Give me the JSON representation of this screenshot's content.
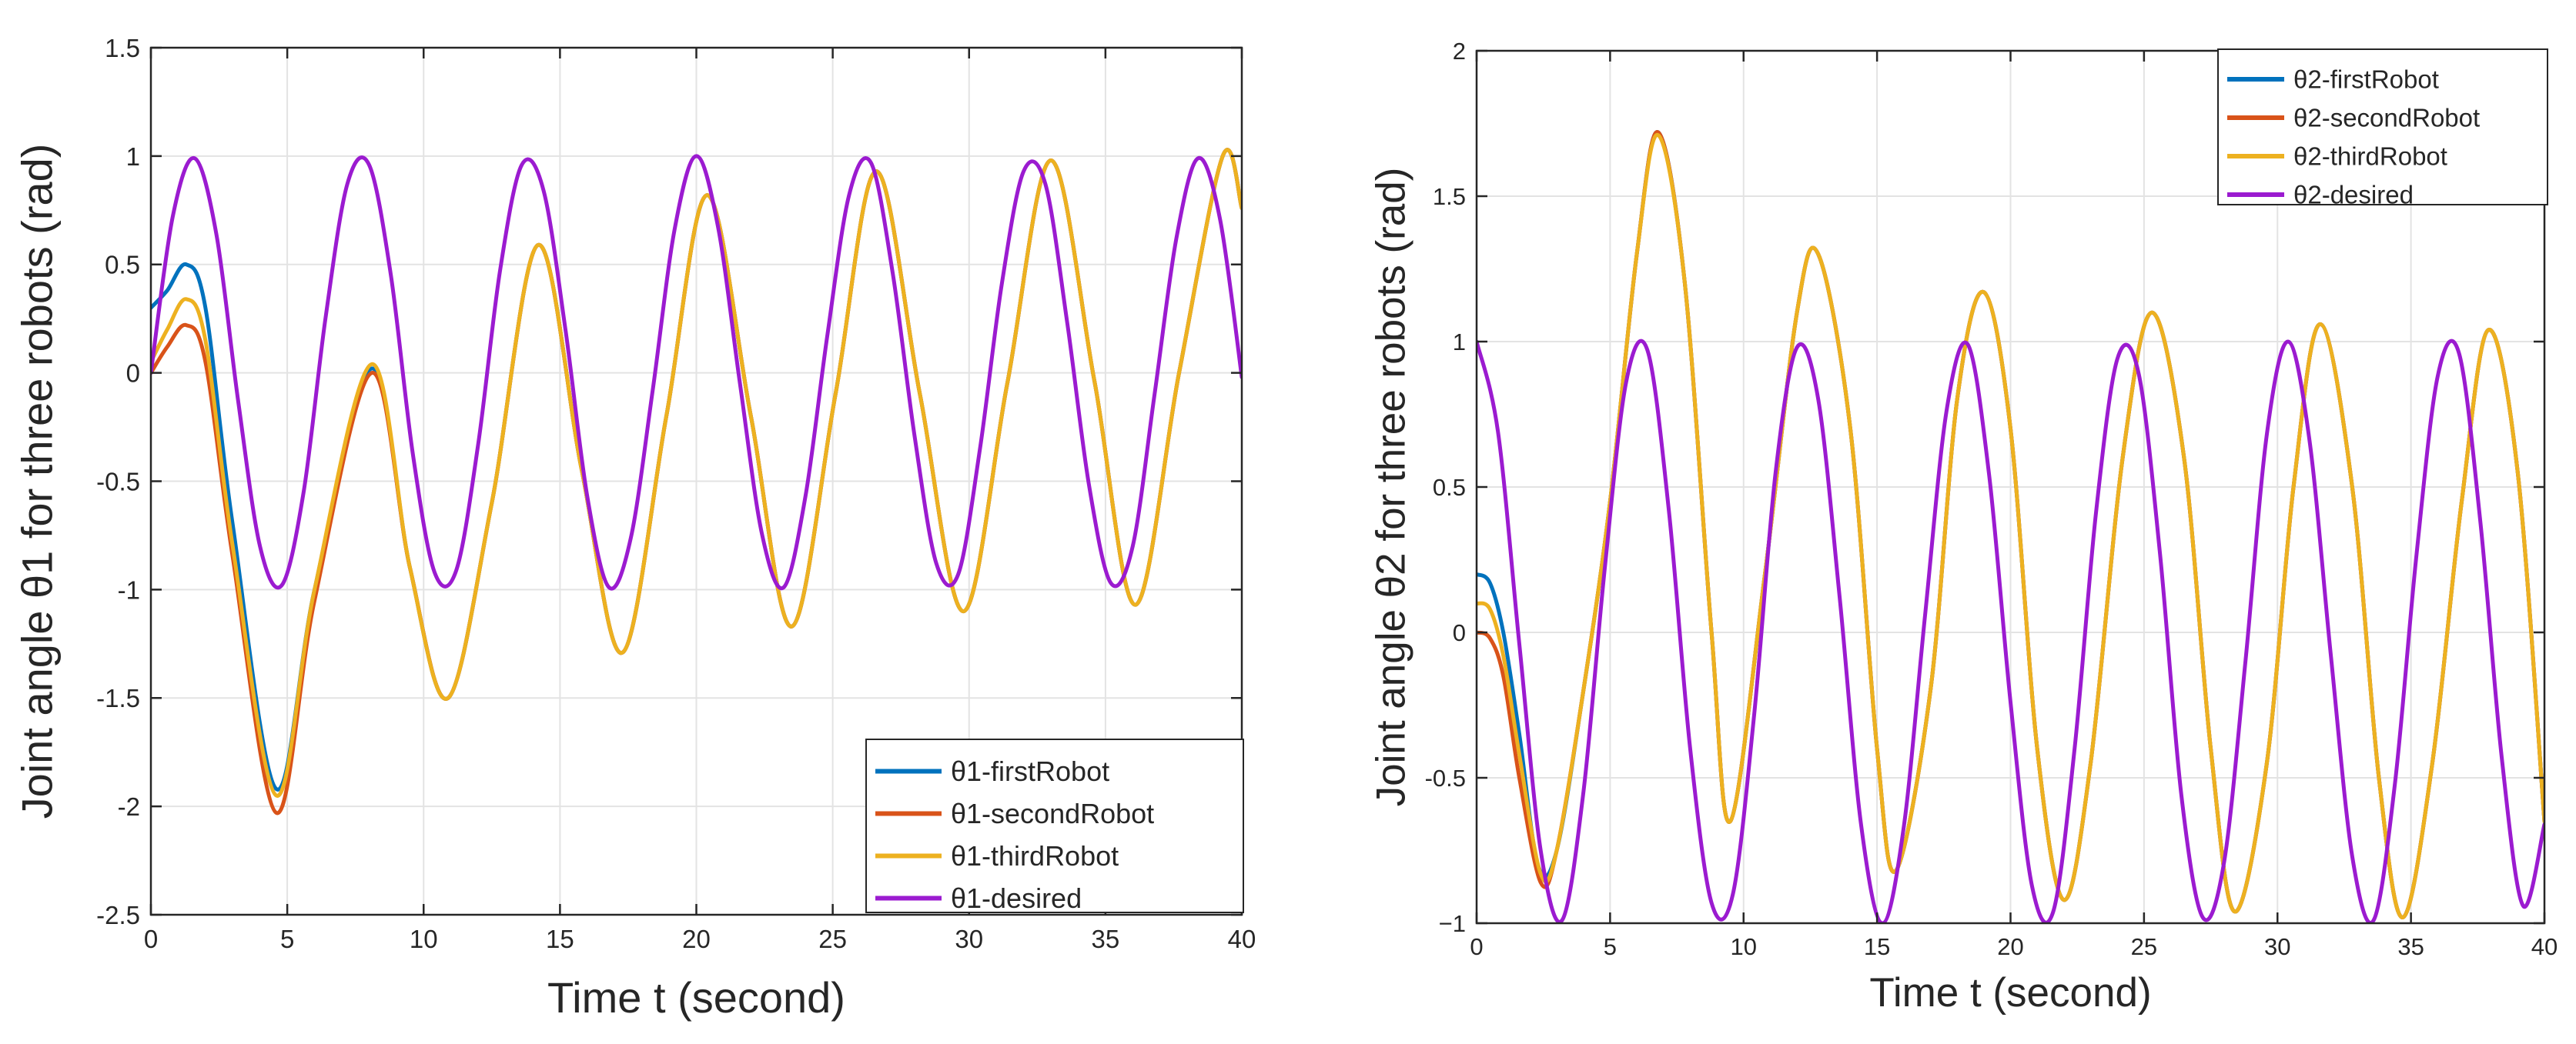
{
  "chart_data": [
    {
      "type": "line",
      "xlabel": "Time t (second)",
      "ylabel": "Joint angle θ1 for three robots (rad)",
      "xlim": [
        0,
        40
      ],
      "ylim": [
        -2.5,
        1.5
      ],
      "grid": true,
      "legend_position": "bottom-right",
      "xticks": [
        0,
        5,
        10,
        15,
        20,
        25,
        30,
        35,
        40
      ],
      "xtick_labels": [
        "0",
        "5",
        "10",
        "15",
        "20",
        "25",
        "30",
        "35",
        "40"
      ],
      "yticks": [
        -2.5,
        -2,
        -1.5,
        -1,
        -0.5,
        0,
        0.5,
        1,
        1.5
      ],
      "ytick_labels": [
        "-2.5",
        "-2",
        "-1.5",
        "-1",
        "-0.5",
        "0",
        "0.5",
        "1",
        "1.5"
      ],
      "series": [
        {
          "name": "θ1-firstRobot",
          "color": "#0072BD",
          "x": [
            0,
            0.6,
            1.3,
            2.0,
            3.0,
            4.6,
            6.0,
            8.1,
            9.5,
            10.9,
            12.5,
            14.2,
            15.8,
            17.3,
            18.9,
            20.4,
            22.0,
            23.5,
            25.1,
            26.6,
            28.2,
            29.8,
            31.4,
            33.0,
            34.6,
            36.1,
            37.7,
            39.3,
            40
          ],
          "values": [
            0.3,
            0.38,
            0.5,
            0.3,
            -0.7,
            -1.92,
            -1.0,
            0.02,
            -0.9,
            -1.5,
            -0.6,
            0.59,
            -0.45,
            -1.29,
            -0.2,
            0.82,
            -0.2,
            -1.17,
            -0.1,
            0.93,
            -0.1,
            -1.1,
            -0.05,
            0.98,
            -0.04,
            -1.07,
            0.0,
            1.0,
            0.76
          ]
        },
        {
          "name": "θ1-secondRobot",
          "color": "#D95319",
          "x": [
            0,
            0.6,
            1.3,
            2.0,
            3.0,
            4.6,
            6.0,
            8.1,
            9.5,
            10.9,
            12.5,
            14.2,
            15.8,
            17.3,
            18.9,
            20.4,
            22.0,
            23.5,
            25.1,
            26.6,
            28.2,
            29.8,
            31.4,
            33.0,
            34.6,
            36.1,
            37.7,
            39.3,
            40
          ],
          "values": [
            0.0,
            0.12,
            0.22,
            0.05,
            -0.85,
            -2.03,
            -1.05,
            0.0,
            -0.9,
            -1.5,
            -0.6,
            0.59,
            -0.45,
            -1.29,
            -0.2,
            0.82,
            -0.2,
            -1.17,
            -0.1,
            0.93,
            -0.1,
            -1.1,
            -0.05,
            0.98,
            -0.04,
            -1.07,
            0.0,
            1.0,
            0.76
          ]
        },
        {
          "name": "θ1-thirdRobot",
          "color": "#EDB120",
          "x": [
            0,
            0.6,
            1.3,
            2.0,
            3.0,
            4.6,
            6.0,
            8.1,
            9.5,
            10.9,
            12.5,
            14.2,
            15.8,
            17.3,
            18.9,
            20.4,
            22.0,
            23.5,
            25.1,
            26.6,
            28.2,
            29.8,
            31.4,
            33.0,
            34.6,
            36.1,
            37.7,
            39.3,
            40
          ],
          "values": [
            0.05,
            0.2,
            0.34,
            0.15,
            -0.8,
            -1.95,
            -1.0,
            0.04,
            -0.9,
            -1.5,
            -0.6,
            0.59,
            -0.45,
            -1.29,
            -0.2,
            0.82,
            -0.2,
            -1.17,
            -0.1,
            0.93,
            -0.1,
            -1.1,
            -0.05,
            0.98,
            -0.04,
            -1.07,
            0.0,
            1.0,
            0.76
          ]
        },
        {
          "name": "θ1-desired",
          "color": "#9B1BD0",
          "x": [
            0,
            0.8,
            1.6,
            2.4,
            3.2,
            4.0,
            4.8,
            5.6,
            6.4,
            7.2,
            8.0,
            8.8,
            9.6,
            10.4,
            11.2,
            12.0,
            12.8,
            13.6,
            14.4,
            15.2,
            16.0,
            16.8,
            17.6,
            18.4,
            19.2,
            20.0,
            20.8,
            21.6,
            22.4,
            23.2,
            24.0,
            24.8,
            25.6,
            26.4,
            27.2,
            28.0,
            28.8,
            29.6,
            30.4,
            31.2,
            32.0,
            32.8,
            33.6,
            34.4,
            35.2,
            36.0,
            36.8,
            37.6,
            38.4,
            39.2,
            40.0
          ],
          "values": [
            0.0,
            0.72,
            0.99,
            0.64,
            -0.13,
            -0.8,
            -0.98,
            -0.55,
            0.25,
            0.87,
            0.96,
            0.45,
            -0.37,
            -0.92,
            -0.91,
            -0.33,
            0.47,
            0.96,
            0.84,
            0.2,
            -0.57,
            -0.99,
            -0.76,
            -0.08,
            0.66,
            1.0,
            0.67,
            -0.05,
            -0.74,
            -0.99,
            -0.57,
            0.17,
            0.82,
            0.97,
            0.46,
            -0.29,
            -0.88,
            -0.93,
            -0.35,
            0.41,
            0.93,
            0.87,
            0.23,
            -0.52,
            -0.97,
            -0.8,
            -0.1,
            0.62,
            0.99,
            0.71,
            -0.02
          ]
        }
      ]
    },
    {
      "type": "line",
      "xlabel": "Time t (second)",
      "ylabel": "Joint angle θ2 for three robots (rad)",
      "xlim": [
        0,
        40
      ],
      "ylim": [
        -1,
        2
      ],
      "grid": true,
      "legend_position": "top-right",
      "xticks": [
        0,
        5,
        10,
        15,
        20,
        25,
        30,
        35,
        40
      ],
      "xtick_labels": [
        "0",
        "5",
        "10",
        "15",
        "20",
        "25",
        "30",
        "35",
        "40"
      ],
      "yticks": [
        -1,
        -0.5,
        0,
        0.5,
        1,
        1.5,
        2
      ],
      "ytick_labels": [
        "−1",
        "-0.5",
        "0",
        "0.5",
        "1",
        "1.5",
        "2"
      ],
      "series": [
        {
          "name": "θ2-firstRobot",
          "color": "#0072BD",
          "x": [
            0,
            0.5,
            1.0,
            1.6,
            2.3,
            3.0,
            4.0,
            5.0,
            6.0,
            6.8,
            7.8,
            8.8,
            9.5,
            10.8,
            12.0,
            12.8,
            14.0,
            15.0,
            15.7,
            17.0,
            18.0,
            19.0,
            20.0,
            21.0,
            22.0,
            23.0,
            24.2,
            25.3,
            26.5,
            27.5,
            28.4,
            29.6,
            30.6,
            31.6,
            32.8,
            33.8,
            34.7,
            35.8,
            36.9,
            37.9,
            39.0,
            40.0
          ],
          "values": [
            0.2,
            0.17,
            0.0,
            -0.35,
            -0.8,
            -0.75,
            -0.2,
            0.45,
            1.3,
            1.72,
            1.2,
            0.0,
            -0.65,
            0.2,
            1.1,
            1.3,
            0.7,
            -0.4,
            -0.82,
            -0.2,
            0.8,
            1.17,
            0.7,
            -0.4,
            -0.92,
            -0.45,
            0.6,
            1.1,
            0.6,
            -0.4,
            -0.96,
            -0.45,
            0.5,
            1.06,
            0.5,
            -0.5,
            -0.98,
            -0.45,
            0.45,
            1.04,
            0.55,
            -0.65
          ]
        },
        {
          "name": "θ2-secondRobot",
          "color": "#D95319",
          "x": [
            0,
            0.5,
            1.0,
            1.6,
            2.4,
            3.0,
            4.0,
            5.0,
            6.0,
            6.8,
            7.8,
            8.8,
            9.5,
            10.8,
            12.0,
            12.8,
            14.0,
            15.0,
            15.7,
            17.0,
            18.0,
            19.0,
            20.0,
            21.0,
            22.0,
            23.0,
            24.2,
            25.3,
            26.5,
            27.5,
            28.4,
            29.6,
            30.6,
            31.6,
            32.8,
            33.8,
            34.7,
            35.8,
            36.9,
            37.9,
            39.0,
            40.0
          ],
          "values": [
            0.0,
            -0.02,
            -0.15,
            -0.5,
            -0.86,
            -0.75,
            -0.2,
            0.45,
            1.3,
            1.72,
            1.2,
            0.0,
            -0.65,
            0.2,
            1.1,
            1.3,
            0.7,
            -0.4,
            -0.82,
            -0.2,
            0.8,
            1.17,
            0.7,
            -0.4,
            -0.92,
            -0.45,
            0.6,
            1.1,
            0.6,
            -0.4,
            -0.96,
            -0.45,
            0.5,
            1.06,
            0.5,
            -0.5,
            -0.98,
            -0.45,
            0.45,
            1.04,
            0.55,
            -0.65
          ]
        },
        {
          "name": "θ2-thirdRobot",
          "color": "#EDB120",
          "x": [
            0,
            0.5,
            1.0,
            1.6,
            2.4,
            3.0,
            4.0,
            5.0,
            6.0,
            6.8,
            7.8,
            8.8,
            9.5,
            10.8,
            12.0,
            12.8,
            14.0,
            15.0,
            15.7,
            17.0,
            18.0,
            19.0,
            20.0,
            21.0,
            22.0,
            23.0,
            24.2,
            25.3,
            26.5,
            27.5,
            28.4,
            29.6,
            30.6,
            31.6,
            32.8,
            33.8,
            34.7,
            35.8,
            36.9,
            37.9,
            39.0,
            40.0
          ],
          "values": [
            0.1,
            0.08,
            -0.08,
            -0.42,
            -0.83,
            -0.75,
            -0.2,
            0.45,
            1.3,
            1.71,
            1.2,
            0.0,
            -0.65,
            0.2,
            1.1,
            1.3,
            0.7,
            -0.4,
            -0.82,
            -0.2,
            0.8,
            1.17,
            0.7,
            -0.4,
            -0.92,
            -0.45,
            0.6,
            1.1,
            0.6,
            -0.4,
            -0.96,
            -0.45,
            0.5,
            1.06,
            0.5,
            -0.5,
            -0.98,
            -0.45,
            0.45,
            1.04,
            0.55,
            -0.65
          ]
        },
        {
          "name": "θ2-desired",
          "color": "#9B1BD0",
          "x": [
            0,
            0.8,
            1.6,
            2.4,
            3.2,
            4.0,
            4.8,
            5.6,
            6.4,
            7.2,
            8.0,
            8.8,
            9.6,
            10.4,
            11.2,
            12.0,
            12.8,
            13.6,
            14.4,
            15.2,
            16.0,
            16.8,
            17.6,
            18.4,
            19.2,
            20.0,
            20.8,
            21.6,
            22.4,
            23.2,
            24.0,
            24.8,
            25.6,
            26.4,
            27.2,
            28.0,
            28.8,
            29.6,
            30.4,
            31.2,
            32.0,
            32.8,
            33.6,
            34.4,
            35.2,
            36.0,
            36.8,
            37.6,
            38.4,
            39.2,
            40.0
          ],
          "values": [
            1.0,
            0.69,
            -0.04,
            -0.75,
            -0.99,
            -0.55,
            0.22,
            0.86,
            0.97,
            0.42,
            -0.4,
            -0.93,
            -0.9,
            -0.28,
            0.55,
            0.98,
            0.8,
            0.12,
            -0.66,
            -1.0,
            -0.67,
            0.06,
            0.76,
            0.99,
            0.54,
            -0.24,
            -0.87,
            -0.96,
            -0.4,
            0.41,
            0.94,
            0.89,
            0.27,
            -0.56,
            -0.98,
            -0.79,
            -0.1,
            0.68,
            1.0,
            0.66,
            -0.08,
            -0.77,
            -0.99,
            -0.52,
            0.26,
            0.88,
            0.96,
            0.38,
            -0.43,
            -0.94,
            -0.66
          ]
        }
      ]
    }
  ]
}
